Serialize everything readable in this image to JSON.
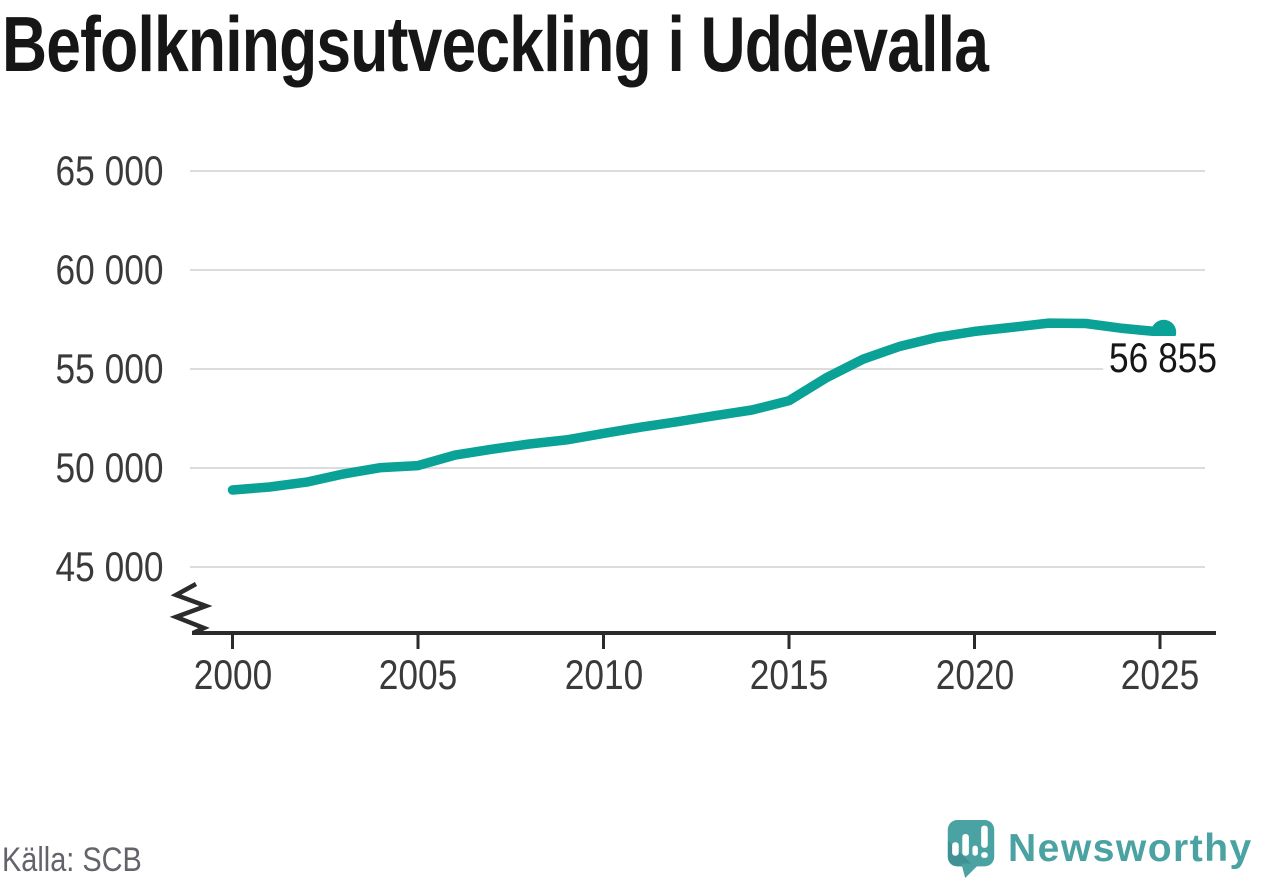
{
  "title": "Befolkningsutveckling i Uddevalla",
  "source": "Källa: SCB",
  "logo": {
    "wordmark": "Newsworthy",
    "icon": "newsworthy-speech-bubble-chart-icon"
  },
  "colors": {
    "background": "#ffffff",
    "line": "#0aa296",
    "grid": "#dcdcdc",
    "axis": "#2b2b2b",
    "tick_label": "#3a3a3a",
    "title": "#161616",
    "end_label": "#161616",
    "source_gray": "#63636b",
    "logo_teal": "#4aa2a2",
    "logo_teal_dark": "#3f9193"
  },
  "chart_data": {
    "type": "line",
    "title": "Befolkningsutveckling i Uddevalla",
    "xlabel": "",
    "ylabel": "",
    "grid": "horizontal",
    "legend": "none",
    "y_axis_break": true,
    "ylim_visible": [
      45000,
      65000
    ],
    "x": [
      2000,
      2001,
      2002,
      2003,
      2004,
      2005,
      2006,
      2007,
      2008,
      2009,
      2010,
      2011,
      2012,
      2013,
      2014,
      2015,
      2016,
      2017,
      2018,
      2019,
      2020,
      2021,
      2022,
      2023,
      2024,
      2025.1
    ],
    "values": [
      48890,
      49040,
      49290,
      49700,
      50020,
      50120,
      50650,
      50950,
      51210,
      51420,
      51750,
      52060,
      52340,
      52640,
      52930,
      53400,
      54550,
      55500,
      56150,
      56600,
      56900,
      57100,
      57320,
      57300,
      57050,
      56855
    ],
    "xticks": [
      "2000",
      "2005",
      "2010",
      "2015",
      "2020",
      "2025"
    ],
    "xtick_years": [
      2000,
      2005,
      2010,
      2015,
      2020,
      2025
    ],
    "yticks": [
      {
        "value": 65000,
        "label": "65 000"
      },
      {
        "value": 60000,
        "label": "60 000"
      },
      {
        "value": 55000,
        "label": "55 000"
      },
      {
        "value": 50000,
        "label": "50 000"
      },
      {
        "value": 45000,
        "label": "45 000"
      }
    ],
    "end_point": {
      "value": 56855,
      "label": "56 855"
    },
    "line_color": "#0aa296"
  }
}
